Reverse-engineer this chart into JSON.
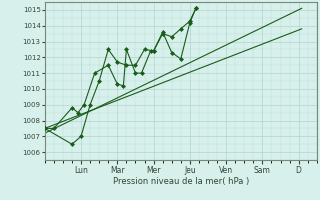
{
  "background_color": "#cce8e4",
  "plot_bg_color": "#d8f0ec",
  "grid_color": "#b8d8d4",
  "line_color": "#1a5c1a",
  "marker_color": "#1a5c1a",
  "xlabel": "Pression niveau de la mer( hPa )",
  "ylim": [
    1005.5,
    1015.5
  ],
  "yticks": [
    1006,
    1007,
    1008,
    1009,
    1010,
    1011,
    1012,
    1013,
    1014,
    1015
  ],
  "day_labels": [
    "Lun",
    "Mar",
    "Mer",
    "Jeu",
    "Ven",
    "Sam",
    "D"
  ],
  "day_positions": [
    24,
    48,
    72,
    96,
    120,
    144,
    168
  ],
  "xlim": [
    0,
    180
  ],
  "series1_x": [
    0,
    6,
    18,
    22,
    26,
    33,
    42,
    48,
    52,
    54,
    60,
    64,
    70,
    72,
    78,
    84,
    90,
    96,
    100
  ],
  "series1_y": [
    1007.5,
    1007.5,
    1008.8,
    1008.5,
    1009.0,
    1011.0,
    1011.5,
    1010.3,
    1010.2,
    1012.5,
    1011.0,
    1011.0,
    1012.4,
    1012.4,
    1013.5,
    1013.3,
    1013.8,
    1014.3,
    1015.1
  ],
  "series2_x": [
    0,
    18,
    24,
    30,
    36,
    42,
    48,
    54,
    60,
    66,
    72,
    78,
    84,
    90,
    96,
    100
  ],
  "series2_y": [
    1007.5,
    1006.5,
    1007.0,
    1009.0,
    1010.5,
    1012.5,
    1011.7,
    1011.5,
    1011.5,
    1012.5,
    1012.4,
    1013.6,
    1012.3,
    1011.9,
    1014.2,
    1015.1
  ],
  "trend1_x": [
    0,
    170
  ],
  "trend1_y": [
    1007.5,
    1013.8
  ],
  "trend2_x": [
    0,
    170
  ],
  "trend2_y": [
    1007.2,
    1015.1
  ]
}
